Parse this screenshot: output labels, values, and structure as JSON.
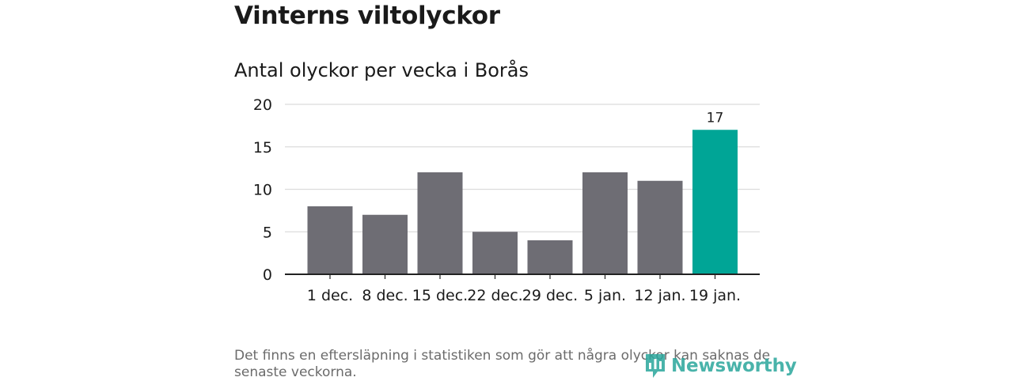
{
  "title": "Vinterns viltolyckor",
  "subtitle": "Antal olyckor per vecka i Borås",
  "footnote": "Det finns en eftersläpning i statistiken som gör att några olyckor kan saknas de senaste veckorna.",
  "logo": {
    "text": "Newsworthy",
    "icon": "newsworthy-logo-icon"
  },
  "colors": {
    "bar": "#6e6d74",
    "highlight": "#00a596",
    "grid": "#dcdcdc",
    "axis": "#222222"
  },
  "chart_data": {
    "type": "bar",
    "categories": [
      "1 dec.",
      "8 dec.",
      "15 dec.",
      "22 dec.",
      "29 dec.",
      "5 jan.",
      "12 jan.",
      "19 jan."
    ],
    "values": [
      8,
      7,
      12,
      5,
      4,
      12,
      11,
      17
    ],
    "highlight_index": 7,
    "data_labels": [
      {
        "index": 7,
        "text": "17"
      }
    ],
    "ylim": [
      0,
      20
    ],
    "yticks": [
      0,
      5,
      10,
      15,
      20
    ],
    "grid": true,
    "title": "Antal olyckor per vecka i Borås",
    "xlabel": "",
    "ylabel": ""
  }
}
